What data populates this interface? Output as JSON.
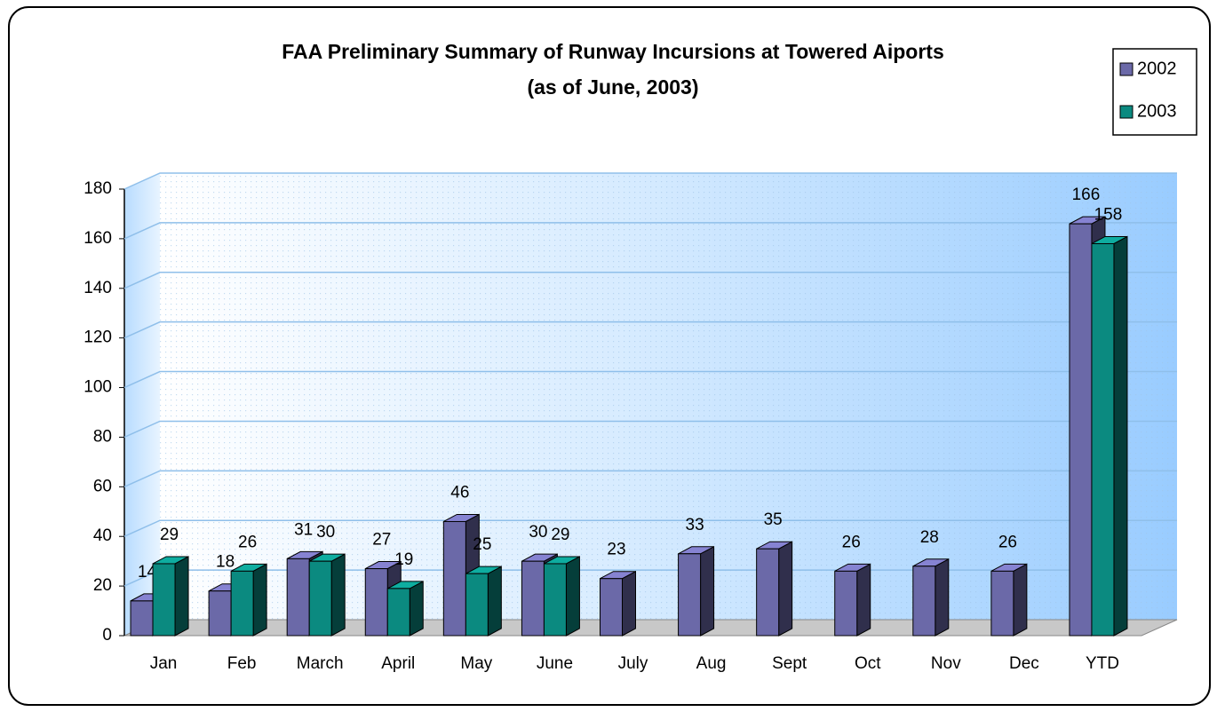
{
  "chart_data": {
    "type": "bar3d",
    "title": "FAA Preliminary Summary of Runway Incursions at Towered Aiports",
    "subtitle": "(as of June, 2003)",
    "categories": [
      "Jan",
      "Feb",
      "March",
      "April",
      "May",
      "June",
      "July",
      "Aug",
      "Sept",
      "Oct",
      "Nov",
      "Dec",
      "YTD"
    ],
    "series": [
      {
        "name": "2002",
        "color": "#6b69a8",
        "values": [
          14,
          18,
          31,
          27,
          46,
          30,
          23,
          33,
          35,
          26,
          28,
          26,
          166
        ]
      },
      {
        "name": "2003",
        "color": "#0b8a80",
        "values": [
          29,
          26,
          30,
          19,
          25,
          29,
          null,
          null,
          null,
          null,
          null,
          null,
          158
        ]
      }
    ],
    "ylim": [
      0,
      180
    ],
    "yticks": [
      0,
      20,
      40,
      60,
      80,
      100,
      120,
      140,
      160,
      180
    ],
    "grid": true,
    "legend": "top-right"
  }
}
